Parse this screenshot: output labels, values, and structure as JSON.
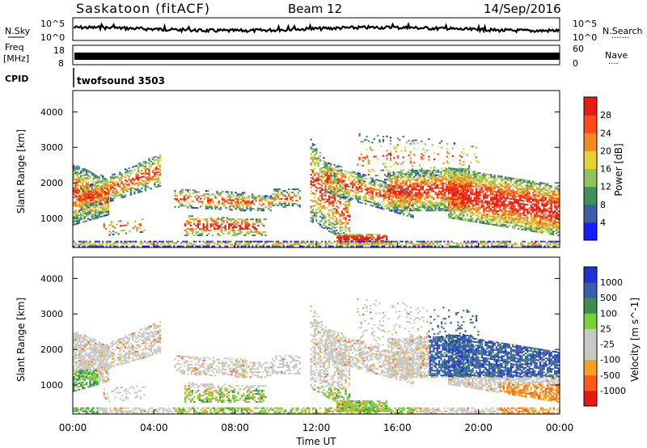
{
  "header": {
    "station": "Saskatoon (fitACF)",
    "beam": "Beam 12",
    "date": "14/Sep/2016"
  },
  "nsky_panel": {
    "left_label": "N.Sky",
    "right_label": "N.Search",
    "right_dots": "·······",
    "tick_top": "10^5",
    "tick_bottom": "10^0"
  },
  "freq_panel": {
    "label_line1": "Freq",
    "label_line2": "[MHz]",
    "tick_left_top": "18",
    "tick_left_bottom": "8",
    "tick_right_top": "60",
    "tick_right_bottom": "0",
    "right_label": "Nave",
    "right_dots": "····"
  },
  "cpid": {
    "label": "CPID",
    "value": "twofsound 3503"
  },
  "colors": {
    "power_scale": [
      "#1a1aff",
      "#3a5fa8",
      "#3f8f5f",
      "#8fc45a",
      "#e8d236",
      "#f28a1e",
      "#ff4a1a",
      "#e81a10"
    ],
    "velocity_scale": [
      "#e81a10",
      "#ff5a1a",
      "#f5a01e",
      "#c9c9c3",
      "#c9c9c3",
      "#7ccf3a",
      "#3a8f4f",
      "#3a5faa",
      "#2232d0"
    ]
  },
  "chart_data": [
    {
      "type": "heatmap",
      "title": "Power",
      "ylabel": "Slant Range [km]",
      "xlabel": "",
      "x_range_hours": [
        0,
        24
      ],
      "ylim": [
        180,
        4600
      ],
      "yticks": [
        "1000",
        "2000",
        "3000",
        "4000"
      ],
      "colorbar_label": "Power [dB]",
      "colorbar_ticks": [
        "4",
        "8",
        "12",
        "16",
        "20",
        "24",
        "28"
      ],
      "colorbar_range": [
        0,
        32
      ]
    },
    {
      "type": "heatmap",
      "title": "Velocity",
      "ylabel": "Slant Range [km]",
      "xlabel": "Time UT",
      "x_range_hours": [
        0,
        24
      ],
      "xticks": [
        "00:00",
        "04:00",
        "08:00",
        "12:00",
        "16:00",
        "20:00",
        "00:00"
      ],
      "ylim": [
        180,
        4600
      ],
      "yticks": [
        "1000",
        "2000",
        "3000",
        "4000"
      ],
      "colorbar_label": "Velocity [m s^-1]",
      "colorbar_ticks": [
        "1000",
        "500",
        "100",
        "25",
        "-25",
        "-100",
        "-500",
        "-1000"
      ]
    }
  ]
}
